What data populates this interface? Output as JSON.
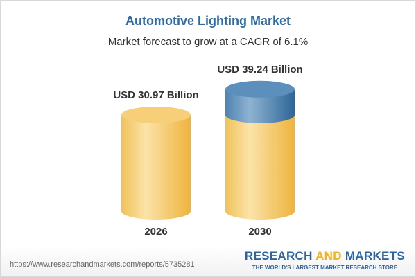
{
  "title": "Automotive Lighting Market",
  "subtitle": "Market forecast to grow at a CAGR of 6.1%",
  "chart_data": {
    "type": "bar",
    "style": "3d-cylinder",
    "categories": [
      "2026",
      "2030"
    ],
    "values": [
      30.97,
      39.24
    ],
    "data_labels": [
      "USD 30.97 Billion",
      "USD 39.24 Billion"
    ],
    "unit": "USD Billion",
    "cagr": "6.1%",
    "colors": {
      "base": "#f5c861",
      "growth": "#4f86b5"
    }
  },
  "footer": {
    "url": "https://www.researchandmarkets.com/reports/5735281",
    "logo_part1": "RESEARCH ",
    "logo_part2": "AND",
    "logo_part3": " MARKETS",
    "logo_tagline": "THE WORLD'S LARGEST MARKET RESEARCH STORE"
  }
}
